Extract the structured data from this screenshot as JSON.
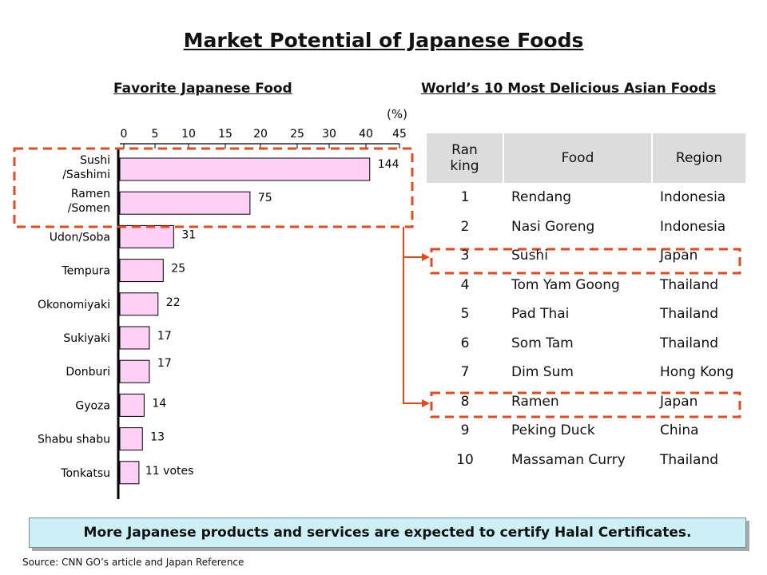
{
  "title": "Market Potential of Japanese Foods",
  "chart_data": {
    "type": "bar",
    "orientation": "horizontal",
    "title": "Favorite Japanese Food",
    "unit_label": "(%)",
    "axis_ticks": [
      "0",
      "5",
      "10",
      "15",
      "20",
      "25",
      "30",
      "40",
      "45"
    ],
    "categories": [
      "Sushi\n/Sashimi",
      "Ramen\n/Somen",
      "Udon/Soba",
      "Tempura",
      "Okonomiyaki",
      "Sukiyaki",
      "Donburi",
      "Gyoza",
      "Shabu shabu",
      "Tonkatsu"
    ],
    "values": [
      144,
      75,
      31,
      25,
      22,
      17,
      17,
      14,
      13,
      11
    ],
    "value_labels": [
      "144",
      "75",
      "31",
      "25",
      "22",
      "17",
      "17",
      "14",
      "13",
      "11 votes"
    ],
    "xlim": [
      0,
      160
    ],
    "bar_color": "#ffd0f5"
  },
  "table": {
    "title": "World’s 10 Most Delicious Asian Foods",
    "headers": [
      "Ran\nking",
      "Food",
      "Region"
    ],
    "rows": [
      [
        "1",
        "Rendang",
        "Indonesia"
      ],
      [
        "2",
        "Nasi Goreng",
        "Indonesia"
      ],
      [
        "3",
        "Sushi",
        "Japan"
      ],
      [
        "4",
        "Tom Yam Goong",
        "Thailand"
      ],
      [
        "5",
        "Pad Thai",
        "Thailand"
      ],
      [
        "6",
        "Som Tam",
        "Thailand"
      ],
      [
        "7",
        "Dim Sum",
        "Hong Kong"
      ],
      [
        "8",
        "Ramen",
        "Japan"
      ],
      [
        "9",
        "Peking Duck",
        "China"
      ],
      [
        "10",
        "Massaman Curry",
        "Thailand"
      ]
    ],
    "highlighted_ranks": [
      "3",
      "8"
    ],
    "highlight_color": "#e8481c"
  },
  "conclusion": "More Japanese products and services are expected to certify Halal Certificates.",
  "source": "Source: CNN GO’s article and Japan Reference"
}
